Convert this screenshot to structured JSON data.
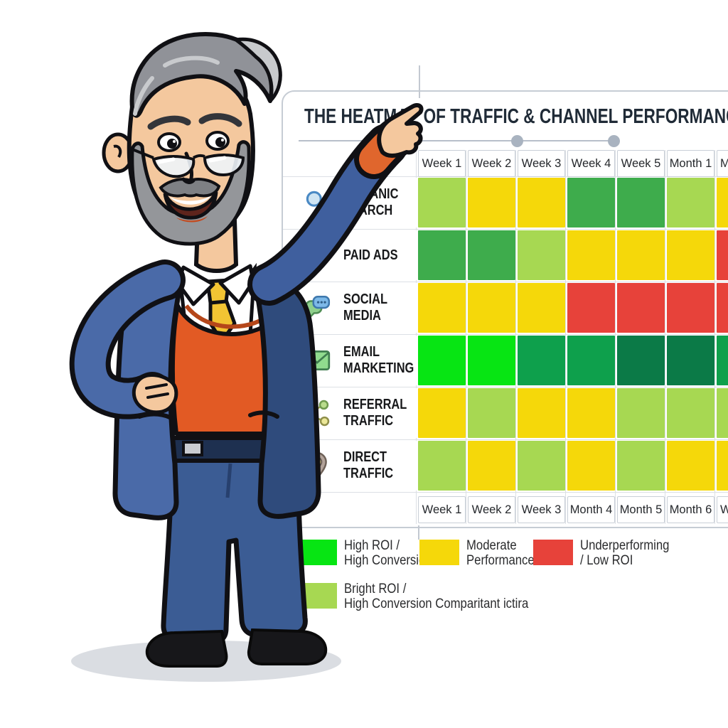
{
  "title": "THE HEATMAP OF TRAFFIC & CHANNEL PERFORMANCE",
  "columns_top": [
    "Week 1",
    "Week 2",
    "Week 3",
    "Week 4",
    "Week 5",
    "Month 1",
    "M"
  ],
  "columns_bottom": [
    "Week 1",
    "Week 2",
    "Week 3",
    "Month 4",
    "Month 5",
    "Month 6",
    "W"
  ],
  "channels": [
    {
      "label_lines": [
        "ORGANIC",
        "SEARCH"
      ],
      "icon": "magnifier-icon"
    },
    {
      "label_lines": [
        "PAID ADS"
      ],
      "icon": "cart-icon"
    },
    {
      "label_lines": [
        "SOCIAL",
        "MEDIA"
      ],
      "icon": "chat-bubbles-icon"
    },
    {
      "label_lines": [
        "EMAIL",
        "MARKETING"
      ],
      "icon": "envelope-icon"
    },
    {
      "label_lines": [
        "REFERRAL",
        "TRAFFIC"
      ],
      "icon": "share-icon"
    },
    {
      "label_lines": [
        "DIRECT",
        "TRAFFIC"
      ],
      "icon": "location-pin-icon"
    }
  ],
  "palette": {
    "bright_green": "#07E513",
    "green": "#3EAC4C",
    "deep_green": "#0EA04C",
    "dark_green": "#0B7A47",
    "light_green": "#A7D852",
    "yellow": "#F5D80A",
    "red": "#E7423A"
  },
  "chart_data": {
    "type": "heatmap",
    "title": "THE HEATMAP OF TRAFFIC & CHANNEL PERFORMANCE",
    "x_labels_top": [
      "Week 1",
      "Week 2",
      "Week 3",
      "Week 4",
      "Week 5",
      "Month 1",
      "M"
    ],
    "x_labels_bottom": [
      "Week 1",
      "Week 2",
      "Week 3",
      "Month 4",
      "Month 5",
      "Month 6",
      "W"
    ],
    "y_labels": [
      "Organic Search",
      "Paid Ads",
      "Social Media",
      "Email Marketing",
      "Referral Traffic",
      "Direct Traffic"
    ],
    "cells": [
      [
        "light_green",
        "yellow",
        "yellow",
        "green",
        "green",
        "light_green",
        "yellow"
      ],
      [
        "green",
        "green",
        "light_green",
        "yellow",
        "yellow",
        "yellow",
        "red"
      ],
      [
        "yellow",
        "yellow",
        "yellow",
        "red",
        "red",
        "red",
        "red"
      ],
      [
        "bright_green",
        "bright_green",
        "deep_green",
        "deep_green",
        "dark_green",
        "dark_green",
        "deep_green"
      ],
      [
        "yellow",
        "light_green",
        "yellow",
        "yellow",
        "light_green",
        "light_green",
        "light_green"
      ],
      [
        "light_green",
        "yellow",
        "light_green",
        "yellow",
        "light_green",
        "yellow",
        "yellow"
      ]
    ],
    "value_scale": {
      "bright_green": "High ROI / High Conversion",
      "yellow": "Moderate Performance",
      "red": "Underperforming / Low ROI",
      "light_green": "Bright ROI / High Conversion Comparitant ictira"
    },
    "legend_position": "bottom",
    "grid": true
  },
  "legend": [
    {
      "swatch": "bright_green",
      "lines": [
        "High ROI /",
        "High Conversion"
      ]
    },
    {
      "swatch": "yellow",
      "lines": [
        "Moderate",
        "Performance"
      ]
    },
    {
      "swatch": "red",
      "lines": [
        "Underperforming",
        "/ Low ROI"
      ]
    },
    {
      "swatch": "light_green",
      "lines": [
        "Bright ROI /",
        "High Conversion Comparitant ictira"
      ]
    }
  ]
}
